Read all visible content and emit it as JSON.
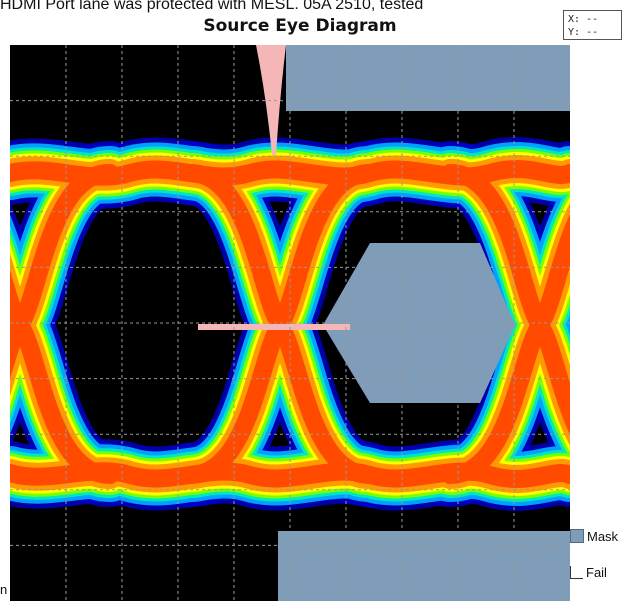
{
  "caption": "HDMI Port lane was protected with MESL. 05A 2510, tested",
  "stray_glyph": "n",
  "readout": {
    "x_label": "X:",
    "x_value": "--",
    "y_label": "Y:",
    "y_value": "--"
  },
  "colors": {
    "background": "#000000",
    "mask": "#7f9cb9",
    "fail_marker": "#f4b6b6",
    "grid": "#9a9a9a",
    "density": [
      "#0000c8",
      "#00a0ff",
      "#00e8c0",
      "#78ff00",
      "#ffff00",
      "#ff9a00",
      "#ff4a00"
    ]
  },
  "chart_data": {
    "type": "heatmap",
    "title": "Source Eye Diagram",
    "xlabel": "",
    "ylabel": "",
    "grid": true,
    "legend": "right-bottom",
    "legend_entries": [
      "Mask",
      "Fail"
    ]
  }
}
